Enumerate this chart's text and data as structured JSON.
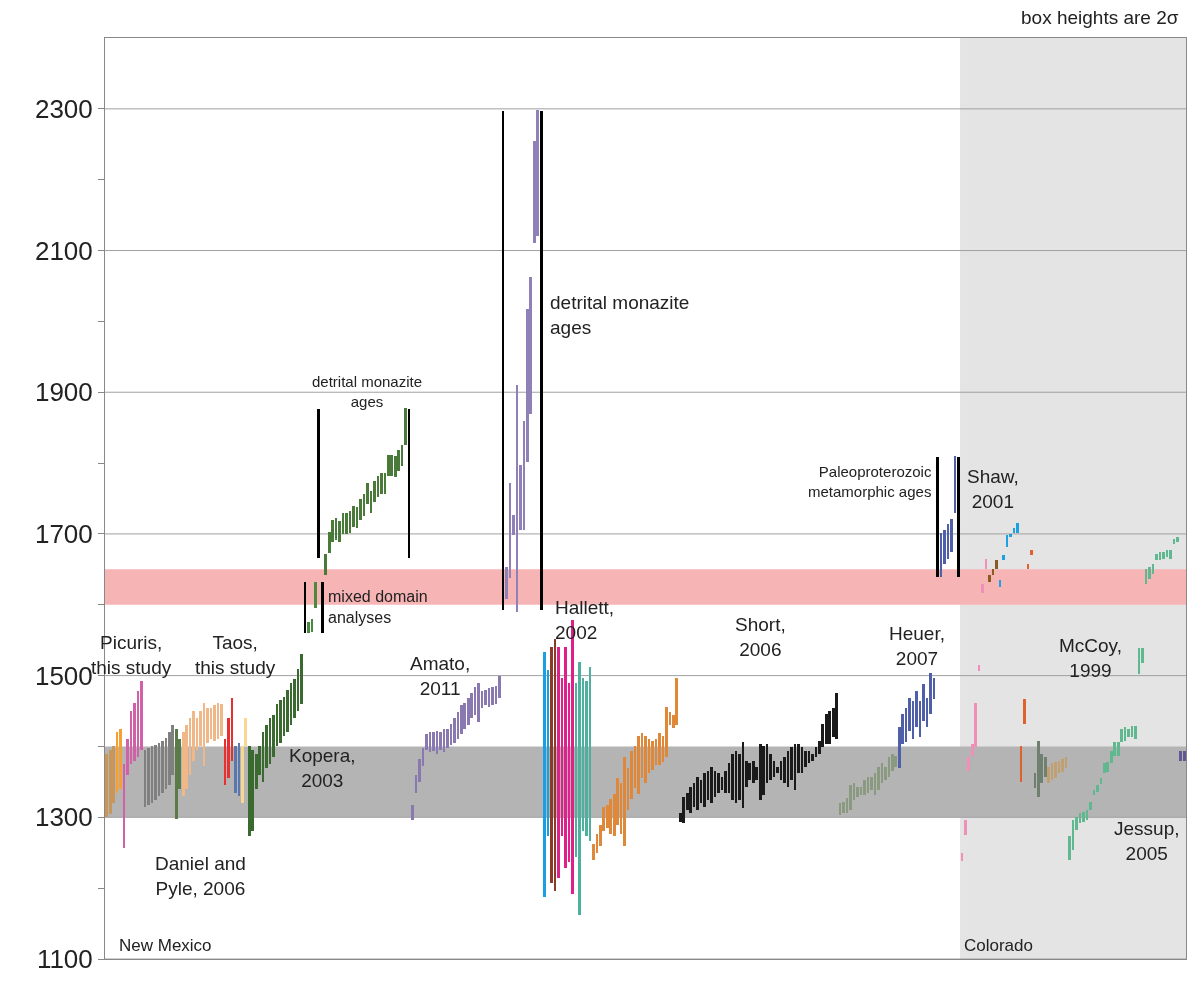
{
  "chart_data": {
    "type": "bar",
    "categories": [
      null,
      null,
      null,
      null,
      null,
      null,
      null,
      null,
      null,
      null,
      null,
      null,
      null,
      null,
      null,
      null,
      null,
      null,
      null,
      null,
      null,
      null,
      null,
      null,
      null,
      null,
      null,
      null,
      null,
      null,
      null,
      null,
      null,
      null,
      null,
      null,
      null,
      null,
      null,
      null,
      null,
      null,
      null,
      null,
      null,
      null,
      null,
      null,
      null,
      null,
      null,
      null,
      null,
      null,
      null,
      null,
      null,
      null,
      null,
      null,
      null,
      null,
      null,
      null,
      null,
      null,
      null,
      null,
      null,
      null,
      null,
      null,
      null,
      null,
      null,
      null,
      null,
      null,
      null,
      null,
      null,
      null,
      null,
      null,
      null,
      null,
      null,
      null,
      null,
      null,
      null,
      null,
      null,
      null,
      null,
      null,
      null,
      null,
      null,
      null,
      null,
      null,
      null,
      null,
      null,
      null,
      null,
      null,
      null,
      null,
      null,
      null,
      null,
      null,
      null,
      null,
      null,
      null,
      null,
      null,
      null,
      null,
      null,
      null,
      null,
      null,
      null,
      null,
      null,
      null,
      null,
      null,
      null,
      null,
      null,
      null,
      null,
      null,
      null,
      null,
      null,
      null,
      null,
      null,
      null,
      null,
      null,
      null,
      null,
      null,
      null,
      null,
      null,
      null,
      null,
      null,
      null,
      null,
      null,
      null,
      null,
      null,
      null,
      null,
      null,
      null,
      null,
      null,
      null,
      null,
      null,
      null,
      null,
      null,
      null,
      null,
      null,
      null,
      null,
      null,
      null,
      null,
      null,
      null,
      null,
      null,
      null,
      null,
      null,
      null,
      null,
      null,
      null,
      null,
      null,
      null,
      null,
      null,
      null,
      null,
      null,
      null,
      null,
      null,
      null,
      null,
      null,
      null,
      null,
      null,
      null,
      null,
      null,
      null,
      null,
      null,
      null,
      null,
      null,
      null,
      null,
      null,
      null,
      null,
      null,
      null,
      null,
      null,
      null,
      null,
      null,
      null,
      null,
      null,
      null,
      null,
      null,
      null,
      null,
      null,
      null,
      null,
      null,
      null,
      null,
      null,
      null,
      null,
      null,
      null,
      null,
      null,
      null,
      null,
      null,
      null,
      null,
      null,
      null,
      null,
      null,
      null,
      null,
      null,
      null,
      null,
      null,
      null,
      null,
      null,
      null,
      null,
      null,
      null,
      null,
      null,
      null,
      null,
      null,
      null,
      null,
      null,
      null,
      null,
      null,
      null,
      null,
      null,
      null,
      null,
      null,
      null,
      null,
      null,
      null,
      null,
      null,
      null,
      null,
      null,
      null,
      null,
      null,
      null,
      null,
      null,
      null,
      null,
      null,
      null,
      null
    ],
    "base": [
      1300,
      1305,
      1320,
      1335,
      1340,
      1257,
      1360,
      1375,
      1380,
      1385,
      1395,
      1315,
      1318,
      1320,
      1325,
      1330,
      1335,
      1340,
      1345,
      1360,
      1298,
      1340,
      1330,
      1340,
      1360,
      1380,
      1395,
      1400,
      1373,
      1405,
      1410,
      1408,
      1410,
      1415,
      1345,
      1355,
      1380,
      1335,
      1330,
      1320,
      1400,
      1273,
      1280,
      1340,
      1360,
      1350,
      1370,
      1375,
      1385,
      1400,
      1405,
      1415,
      1420,
      1430,
      1440,
      1450,
      1460,
      1560,
      1560,
      1562,
      1596,
      1666,
      1560,
      1642,
      1673,
      1689,
      1692,
      1688,
      1700,
      1700,
      1702,
      1710,
      1708,
      1719,
      1726,
      1742,
      1730,
      1745,
      1752,
      1756,
      1756,
      1782,
      1782,
      1780,
      1789,
      1796,
      1826,
      1666,
      1296,
      1335,
      1350,
      1372,
      1395,
      1392,
      1393,
      1390,
      1395,
      1392,
      1398,
      1402,
      1405,
      1410,
      1418,
      1425,
      1430,
      1440,
      1445,
      1435,
      1455,
      1458,
      1456,
      1458,
      1460,
      1468,
      1593,
      1608,
      1638,
      1698,
      1590,
      1705,
      1705,
      1801,
      1869,
      2110,
      2121,
      1593,
      1188,
      1274,
      1207,
      1196,
      1214,
      1274,
      1229,
      1237,
      1192,
      1244,
      1162,
      1281,
      1274,
      1266,
      1240,
      1250,
      1259,
      1281,
      1285,
      1277,
      1274,
      1289,
      1277,
      1259,
      1311,
      1326,
      1341,
      1333,
      1356,
      1348,
      1363,
      1367,
      1374,
      1374,
      1378,
      1385,
      1430,
      1426,
      1430,
      1294,
      1292,
      1310,
      1306,
      1315,
      1310,
      1320,
      1315,
      1324,
      1320,
      1329,
      1334,
      1338,
      1334,
      1334,
      1324,
      1320,
      1324,
      1313,
      1343,
      1352,
      1348,
      1352,
      1324,
      1331,
      1348,
      1352,
      1357,
      1362,
      1352,
      1348,
      1343,
      1352,
      1338,
      1362,
      1362,
      1371,
      1376,
      1380,
      1385,
      1390,
      1399,
      1404,
      1404,
      1413,
      1411,
      1303,
      1306,
      1306,
      1310,
      1324,
      1329,
      1331,
      1331,
      1334,
      1338,
      1331,
      1338,
      1348,
      1352,
      1357,
      1366,
      1371,
      1369,
      1404,
      1406,
      1422,
      1411,
      1427,
      1413,
      1436,
      1427,
      1446,
      1467,
      1639,
      1639,
      1658,
      1665,
      1674,
      1730,
      1639,
      1238,
      1275,
      1366,
      1387,
      1399,
      1507,
      1616,
      1651,
      1632,
      1642,
      1651,
      1625,
      1663,
      1681,
      1695,
      1702,
      1702,
      1350,
      1432,
      1651,
      1670,
      1341,
      1329,
      1348,
      1357,
      1348,
      1352,
      1355,
      1362,
      1364,
      1369,
      1240,
      1254,
      1282,
      1292,
      1294,
      1296,
      1310,
      1331,
      1336,
      1347,
      1362,
      1364,
      1376,
      1387,
      1387,
      1406,
      1408,
      1413,
      1413,
      1411,
      1502,
      1518,
      1630,
      1637,
      1644,
      1663,
      1663,
      1665,
      1667,
      1665,
      1686,
      1688,
      1380,
      1380
    ],
    "values": [
      90,
      90,
      80,
      85,
      85,
      118,
      50,
      75,
      82,
      93,
      97,
      80,
      80,
      80,
      77,
      75,
      73,
      72,
      75,
      70,
      127,
      70,
      90,
      90,
      80,
      70,
      45,
      50,
      89,
      50,
      45,
      50,
      52,
      45,
      65,
      85,
      88,
      65,
      75,
      80,
      40,
      127,
      115,
      50,
      40,
      70,
      60,
      65,
      60,
      60,
      60,
      55,
      60,
      60,
      55,
      60,
      70,
      72,
      15,
      18,
      36,
      210,
      72,
      30,
      30,
      30,
      30,
      30,
      30,
      30,
      30,
      30,
      30,
      30,
      30,
      30,
      30,
      30,
      30,
      30,
      30,
      30,
      30,
      30,
      30,
      30,
      52,
      210,
      22,
      25,
      32,
      26,
      23,
      28,
      27,
      32,
      25,
      33,
      26,
      30,
      35,
      38,
      40,
      37,
      38,
      35,
      39,
      55,
      23,
      22,
      26,
      26,
      26,
      32,
      704,
      45,
      134,
      29,
      320,
      92,
      155,
      216,
      193,
      145,
      178,
      704,
      346,
      234,
      334,
      356,
      327,
      223,
      312,
      252,
      386,
      245,
      357,
      216,
      219,
      246,
      22,
      27,
      30,
      34,
      33,
      49,
      59,
      67,
      71,
      126,
      59,
      67,
      59,
      82,
      63,
      67,
      48,
      41,
      37,
      45,
      37,
      71,
      18,
      19,
      67,
      12,
      37,
      24,
      37,
      33,
      47,
      32,
      47,
      42,
      51,
      37,
      28,
      19,
      32,
      42,
      66,
      74,
      66,
      93,
      37,
      24,
      32,
      19,
      80,
      70,
      56,
      38,
      23,
      9,
      28,
      37,
      51,
      47,
      66,
      42,
      37,
      23,
      18,
      10,
      14,
      18,
      33,
      42,
      46,
      42,
      65,
      17,
      16,
      21,
      35,
      24,
      14,
      12,
      21,
      23,
      19,
      31,
      33,
      28,
      19,
      28,
      24,
      16,
      58,
      42,
      49,
      47,
      53,
      51,
      51,
      52,
      42,
      58,
      30,
      169,
      63,
      47,
      49,
      47,
      80,
      169,
      11,
      21,
      19,
      17,
      63,
      8,
      14,
      14,
      10,
      9,
      12,
      10,
      7,
      17,
      5,
      7,
      14,
      51,
      35,
      7,
      8,
      21,
      79,
      42,
      28,
      23,
      24,
      23,
      18,
      19,
      16,
      33,
      42,
      19,
      14,
      14,
      14,
      12,
      7,
      9,
      8,
      14,
      14,
      18,
      19,
      19,
      19,
      19,
      12,
      16,
      18,
      37,
      21,
      21,
      16,
      14,
      9,
      11,
      9,
      10,
      12,
      7,
      7,
      14,
      14
    ],
    "colors": [
      "#c8965a",
      "#c8965a",
      "#c8965a",
      "#f5a030",
      "#f5a030",
      "#d060a8",
      "#d060a8",
      "#d060a8",
      "#d060a8",
      "#d060a8",
      "#d060a8",
      "#808080",
      "#808080",
      "#808080",
      "#808080",
      "#808080",
      "#808080",
      "#808080",
      "#808080",
      "#808080",
      "#5a7a48",
      "#5a7a48",
      "#f0b888",
      "#f0b888",
      "#f0b888",
      "#f0b888",
      "#f0b888",
      "#f0b888",
      "#f0b888",
      "#f0b888",
      "#f0b888",
      "#f0b888",
      "#f0b888",
      "#f0b888",
      "#e83030",
      "#e83030",
      "#e83030",
      "#5a78b0",
      "#5a78b0",
      "#f8d890",
      "#f8d890",
      "#3a6a30",
      "#3a6a30",
      "#3a6a30",
      "#3a6a30",
      "#3a6a30",
      "#3a6a30",
      "#3a6a30",
      "#3a6a30",
      "#3a6a30",
      "#3a6a30",
      "#3a6a30",
      "#3a6a30",
      "#3a6a30",
      "#3a6a30",
      "#3a6a30",
      "#3a6a30",
      "#000000",
      "#4a8a40",
      "#4a8a40",
      "#4a8a40",
      "#000000",
      "#000000",
      "#4a7a3a",
      "#4a7a3a",
      "#4a7a3a",
      "#4a7a3a",
      "#4a7a3a",
      "#4a7a3a",
      "#4a7a3a",
      "#4a7a3a",
      "#4a7a3a",
      "#4a7a3a",
      "#4a7a3a",
      "#4a7a3a",
      "#4a7a3a",
      "#4a7a3a",
      "#4a7a3a",
      "#4a7a3a",
      "#4a7a3a",
      "#4a7a3a",
      "#4a7a3a",
      "#4a7a3a",
      "#4a7a3a",
      "#4a7a3a",
      "#4a7a3a",
      "#4a7a3a",
      "#000000",
      "#8a78b0",
      "#8a78b0",
      "#8a78b0",
      "#8a78b0",
      "#8a78b0",
      "#8a78b0",
      "#8a78b0",
      "#8a78b0",
      "#8a78b0",
      "#8a78b0",
      "#8a78b0",
      "#8a78b0",
      "#8a78b0",
      "#8a78b0",
      "#8a78b0",
      "#8a78b0",
      "#8a78b0",
      "#8a78b0",
      "#8a78b0",
      "#8a78b0",
      "#8a78b0",
      "#8a78b0",
      "#8a78b0",
      "#8a78b0",
      "#8a78b0",
      "#8a78b0",
      "#000000",
      "#9080b8",
      "#9080b8",
      "#9080b8",
      "#9080b8",
      "#9080b8",
      "#9080b8",
      "#9080b8",
      "#9080b8",
      "#9080b8",
      "#9080b8",
      "#000000",
      "#1aa0e0",
      "#1aa0e0",
      "#8b3a2a",
      "#8b3a2a",
      "#e0208a",
      "#e0208a",
      "#e0208a",
      "#e0208a",
      "#e0208a",
      "#50b0a0",
      "#50b0a0",
      "#50b0a0",
      "#50b0a0",
      "#50b0a0",
      "#e0883a",
      "#e0883a",
      "#e0883a",
      "#e0883a",
      "#e0883a",
      "#e0883a",
      "#e0883a",
      "#e0883a",
      "#e0883a",
      "#e0883a",
      "#e0883a",
      "#e0883a",
      "#e0883a",
      "#e0883a",
      "#e0883a",
      "#e0883a",
      "#e0883a",
      "#e0883a",
      "#e0883a",
      "#e0883a",
      "#e0883a",
      "#e0883a",
      "#e0883a",
      "#e0883a",
      "#e0883a",
      "#1a1a1a",
      "#1a1a1a",
      "#1a1a1a",
      "#1a1a1a",
      "#1a1a1a",
      "#1a1a1a",
      "#1a1a1a",
      "#1a1a1a",
      "#1a1a1a",
      "#1a1a1a",
      "#1a1a1a",
      "#1a1a1a",
      "#1a1a1a",
      "#1a1a1a",
      "#1a1a1a",
      "#1a1a1a",
      "#1a1a1a",
      "#1a1a1a",
      "#1a1a1a",
      "#1a1a1a",
      "#1a1a1a",
      "#1a1a1a",
      "#1a1a1a",
      "#1a1a1a",
      "#1a1a1a",
      "#1a1a1a",
      "#1a1a1a",
      "#1a1a1a",
      "#1a1a1a",
      "#1a1a1a",
      "#1a1a1a",
      "#1a1a1a",
      "#1a1a1a",
      "#1a1a1a",
      "#1a1a1a",
      "#1a1a1a",
      "#1a1a1a",
      "#1a1a1a",
      "#1a1a1a",
      "#1a1a1a",
      "#1a1a1a",
      "#1a1a1a",
      "#1a1a1a",
      "#1a1a1a",
      "#1a1a1a",
      "#1a1a1a",
      "#8a9a80",
      "#8a9a80",
      "#8a9a80",
      "#8a9a80",
      "#8a9a80",
      "#8a9a80",
      "#8a9a80",
      "#8a9a80",
      "#8a9a80",
      "#8a9a80",
      "#8a9a80",
      "#8a9a80",
      "#8a9a80",
      "#8a9a80",
      "#8a9a80",
      "#8a9a80",
      "#8a9a80",
      "#5060a8",
      "#5060a8",
      "#5060a8",
      "#5060a8",
      "#5060a8",
      "#5060a8",
      "#5060a8",
      "#5060a8",
      "#5060a8",
      "#5060a8",
      "#5060a8",
      "#000000",
      "#5060a8",
      "#5060a8",
      "#5060a8",
      "#5060a8",
      "#5060a8",
      "#000000",
      "#f090b8",
      "#f090b8",
      "#f090b8",
      "#f090b8",
      "#f090b8",
      "#f090b8",
      "#f090b8",
      "#f090b8",
      "#8b5a20",
      "#8b5a20",
      "#8b5a20",
      "#20a0e0",
      "#20a0e0",
      "#20a0e0",
      "#20a0e0",
      "#20a0e0",
      "#20a0e0",
      "#e06030",
      "#e06030",
      "#e06030",
      "#e06030",
      "#708070",
      "#708070",
      "#708070",
      "#708070",
      "#c0a070",
      "#c0a070",
      "#c0a070",
      "#c0a070",
      "#c0a070",
      "#c0a070",
      "#60b890",
      "#60b890",
      "#60b890",
      "#60b890",
      "#60b890",
      "#60b890",
      "#60b890",
      "#60b890",
      "#60b890",
      "#60b890",
      "#60b890",
      "#60b890",
      "#60b890",
      "#60b890",
      "#60b890",
      "#60b890",
      "#60b890",
      "#60b890",
      "#60b890",
      "#60b890",
      "#60b890",
      "#60b890",
      "#60b890",
      "#60b890",
      "#60b890",
      "#60b890",
      "#60b890",
      "#60b890",
      "#60b890",
      "#60b890",
      "#60b890",
      "#60b890",
      "#605890",
      "#605890"
    ],
    "ylim": [
      1100,
      2400
    ],
    "yticks": [
      1100,
      {
        "value": 1200,
        "label": null
      },
      1300,
      {
        "value": 1400,
        "label": null
      },
      1500,
      {
        "value": 1600,
        "label": null
      },
      1700,
      {
        "value": 1800,
        "label": null
      },
      1900,
      {
        "value": 2000,
        "label": null
      },
      2100,
      {
        "value": 2200,
        "label": null
      },
      2300
    ],
    "grid": "y",
    "tick_labels": "y",
    "bands": [
      {
        "axis": "y",
        "from": 1300,
        "to": 1400,
        "color": "#b4b4b4"
      },
      {
        "axis": "y",
        "from": 1600,
        "to": 1650,
        "color": "#f7b4b4"
      }
    ],
    "annotations": [
      "box heights are 2σ",
      "New Mexico",
      "Colorado",
      "Picuris,\nthis study",
      "Taos,\nthis study",
      "Daniel and\nPyle, 2006",
      "Kopera,\n2003",
      "detrital monazite\nages",
      "mixed domain\nanalyses",
      "Amato,\n2011",
      "detrital monazite\nages",
      "Hallett,\n2002",
      "Short,\n2006",
      "Heuer,\n2007",
      "Paleoproterozoic\nmetamorphic ages",
      "Shaw,\n2001",
      "McCoy,\n1999",
      "Jessup,\n2005"
    ]
  }
}
